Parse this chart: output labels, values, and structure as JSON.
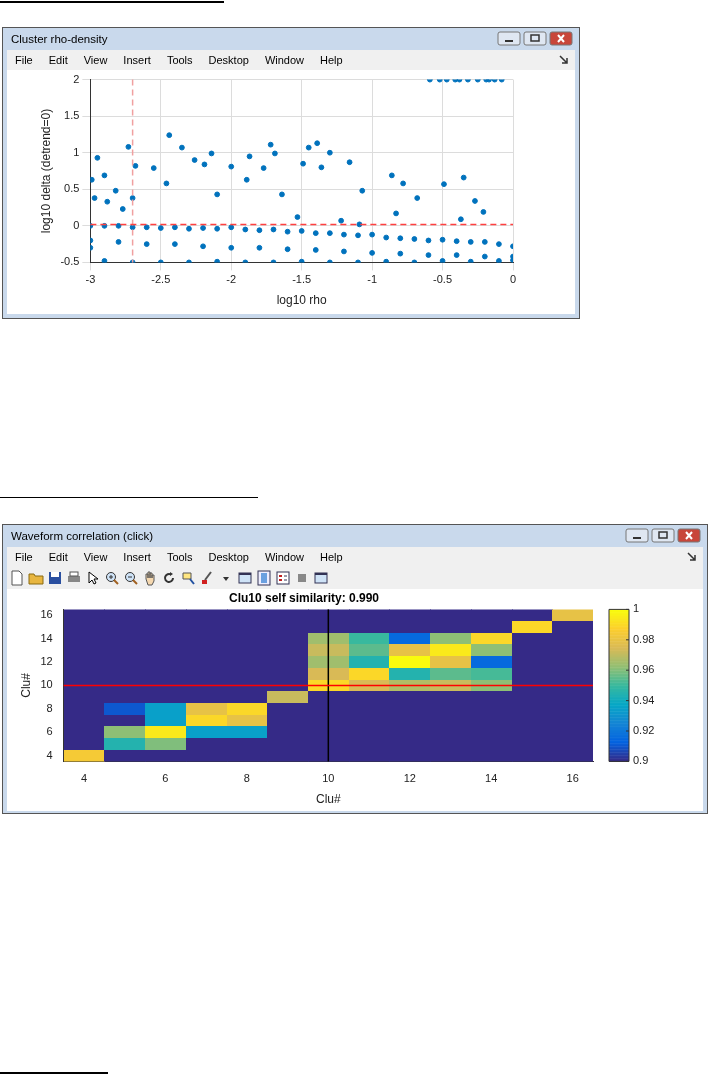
{
  "chart_data": [
    {
      "type": "scatter",
      "annotations": [
        "Cluster rho-density",
        "File",
        "Edit",
        "View",
        "Insert",
        "Tools",
        "Desktop",
        "Window",
        "Help"
      ],
      "xlabel": "log10 rho",
      "ylabel": "log10 delta (detrend=0)",
      "xlim": [
        -3,
        0
      ],
      "xticks": [
        -3,
        -2.5,
        -2,
        -1.5,
        -1,
        -0.5,
        0
      ],
      "ylim": [
        -0.5,
        2
      ],
      "yticks": [
        -0.5,
        0,
        0.5,
        1,
        1.5,
        2
      ],
      "grid": true,
      "marker": "circle",
      "ref_lines": [
        {
          "axis": "x",
          "value": -2.7,
          "color": "#f0a0a0",
          "line_style": "dashed"
        },
        {
          "axis": "y",
          "value": 0.02,
          "color": "#ff4040",
          "line_style": "dashed"
        }
      ],
      "series": [
        {
          "color": "#0072bd",
          "x": [
            -2.95,
            -2.73,
            -2.44,
            -2.35,
            -2.26,
            -2.14,
            -1.87,
            -1.72,
            -1.69,
            -1.45,
            -1.39,
            -1.3,
            -1.16,
            -1.49,
            -1.36,
            -0.78,
            -0.49,
            -0.35,
            -0.27,
            -0.21,
            -0.37,
            -0.86,
            -1.07,
            -1.22,
            -1.53,
            -1.77,
            -1.89,
            -2.0,
            -2.19,
            -2.55,
            -2.46,
            -2.9,
            -2.82,
            -2.68,
            -2.1,
            -1.64,
            -0.68,
            -0.83,
            -1.09,
            -2.99,
            -2.97,
            -2.88,
            -2.77,
            -2.7,
            -0.59,
            -0.52,
            -0.47,
            -0.41,
            -0.38,
            -0.32,
            -0.25,
            -0.19,
            -0.17,
            -0.13,
            -0.08,
            -3,
            -2.9,
            -2.8,
            -2.7,
            -2.6,
            -2.5,
            -2.4,
            -2.3,
            -2.2,
            -2.1,
            -2,
            -1.9,
            -1.8,
            -1.7,
            -1.6,
            -1.5,
            -1.4,
            -1.3,
            -1.2,
            -1.1,
            -1,
            -0.9,
            -0.8,
            -0.7,
            -0.6,
            -0.5,
            -0.4,
            -0.3,
            -0.2,
            -0.1,
            0,
            -3,
            -2.8,
            -2.6,
            -2.4,
            -2.2,
            -2,
            -1.8,
            -1.6,
            -1.4,
            -1.2,
            -1,
            -0.8,
            -0.6,
            -0.4,
            -0.2,
            0,
            -3,
            -2.9,
            -2.7,
            -2.5,
            -2.3,
            -2.1,
            -1.9,
            -1.7,
            -1.5,
            -1.3,
            -1.1,
            -0.9,
            -0.7,
            -0.5,
            -0.3,
            -0.1,
            0
          ],
          "values": [
            0.93,
            1.08,
            1.24,
            1.07,
            0.9,
            0.99,
            0.95,
            1.11,
            0.99,
            1.07,
            1.13,
            1,
            0.87,
            0.85,
            0.8,
            0.58,
            0.57,
            0.66,
            0.34,
            0.19,
            0.09,
            0.69,
            0.48,
            0.07,
            0.12,
            0.79,
            0.63,
            0.81,
            0.84,
            0.79,
            0.58,
            0.69,
            0.48,
            0.82,
            0.43,
            0.43,
            0.38,
            0.17,
            0.02,
            0.63,
            0.38,
            0.33,
            0.23,
            0.38,
            2,
            2,
            2,
            2,
            2,
            2,
            2,
            2,
            2,
            2,
            2,
            0,
            0,
            0,
            -0.02,
            -0.02,
            -0.03,
            -0.02,
            -0.04,
            -0.03,
            -0.04,
            -0.02,
            -0.05,
            -0.06,
            -0.05,
            -0.08,
            -0.07,
            -0.1,
            -0.1,
            -0.12,
            -0.13,
            -0.12,
            -0.16,
            -0.17,
            -0.18,
            -0.2,
            -0.19,
            -0.21,
            -0.22,
            -0.22,
            -0.25,
            -0.28,
            -0.2,
            -0.22,
            -0.25,
            -0.25,
            -0.28,
            -0.3,
            -0.3,
            -0.32,
            -0.33,
            -0.35,
            -0.37,
            -0.38,
            -0.4,
            -0.4,
            -0.42,
            -0.42,
            -0.3,
            -0.48,
            -0.5,
            -0.5,
            -0.5,
            -0.49,
            -0.5,
            -0.5,
            -0.49,
            -0.5,
            -0.5,
            -0.49,
            -0.5,
            -0.48,
            -0.49,
            -0.48,
            -0.47
          ]
        }
      ]
    },
    {
      "type": "heatmap",
      "annotations": [
        "Waveform correlation (click)",
        "File",
        "Edit",
        "View",
        "Insert",
        "Tools",
        "Desktop",
        "Window",
        "Help"
      ],
      "title": "Clu10 self similarity: 0.990",
      "xlabel": "Clu#",
      "ylabel": "Clu#",
      "categories": [
        "4",
        null,
        "6",
        null,
        "8",
        null,
        "10",
        null,
        "12",
        null,
        "14",
        null,
        "16"
      ],
      "y_categories": [
        "16",
        null,
        "14",
        null,
        "12",
        null,
        "10",
        null,
        "8",
        null,
        "6",
        null,
        "4"
      ],
      "clim": [
        0.9,
        1
      ],
      "cticks": [
        0.9,
        0.92,
        0.94,
        0.96,
        0.98,
        1
      ],
      "ref_lines": [
        {
          "axis": "x",
          "value": "10",
          "color": "#000000"
        },
        {
          "axis": "y",
          "value": "10",
          "color": "#ff0000"
        }
      ],
      "cells": [
        [
          0.9,
          0.9,
          0.9,
          0.9,
          0.9,
          0.9,
          0.9,
          0.9,
          0.9,
          0.9,
          0.9,
          0.9,
          0.98
        ],
        [
          0.9,
          0.9,
          0.9,
          0.9,
          0.9,
          0.9,
          0.9,
          0.9,
          0.9,
          0.9,
          0.9,
          0.99,
          0.9
        ],
        [
          0.9,
          0.9,
          0.9,
          0.9,
          0.9,
          0.9,
          0.965,
          0.95,
          0.915,
          0.962,
          0.99,
          0.9,
          0.9
        ],
        [
          0.9,
          0.9,
          0.9,
          0.9,
          0.9,
          0.9,
          0.972,
          0.955,
          0.98,
          0.995,
          0.962,
          0.9,
          0.9
        ],
        [
          0.9,
          0.9,
          0.9,
          0.9,
          0.9,
          0.9,
          0.965,
          0.945,
          1,
          0.98,
          0.915,
          0.9,
          0.9
        ],
        [
          0.9,
          0.9,
          0.9,
          0.9,
          0.9,
          0.9,
          0.975,
          0.99,
          0.945,
          0.955,
          0.952,
          0.9,
          0.9
        ],
        [
          0.9,
          0.9,
          0.9,
          0.9,
          0.9,
          0.9,
          0.99,
          0.975,
          0.968,
          0.972,
          0.962,
          0.9,
          0.9
        ],
        [
          0.9,
          0.9,
          0.9,
          0.9,
          0.9,
          0.972,
          0.9,
          0.9,
          0.9,
          0.9,
          0.9,
          0.9,
          0.9
        ],
        [
          0.9,
          0.91,
          0.935,
          0.98,
          0.99,
          0.9,
          0.9,
          0.9,
          0.9,
          0.9,
          0.9,
          0.9,
          0.9
        ],
        [
          0.9,
          0.9,
          0.935,
          0.99,
          0.98,
          0.9,
          0.9,
          0.9,
          0.9,
          0.9,
          0.9,
          0.9,
          0.9
        ],
        [
          0.9,
          0.962,
          0.995,
          0.935,
          0.935,
          0.9,
          0.9,
          0.9,
          0.9,
          0.9,
          0.9,
          0.9,
          0.9
        ],
        [
          0.9,
          0.945,
          0.96,
          0.9,
          0.9,
          0.9,
          0.9,
          0.9,
          0.9,
          0.9,
          0.9,
          0.9,
          0.9
        ],
        [
          0.985,
          0.9,
          0.9,
          0.9,
          0.9,
          0.9,
          0.9,
          0.9,
          0.9,
          0.9,
          0.9,
          0.9,
          0.9
        ]
      ]
    }
  ]
}
